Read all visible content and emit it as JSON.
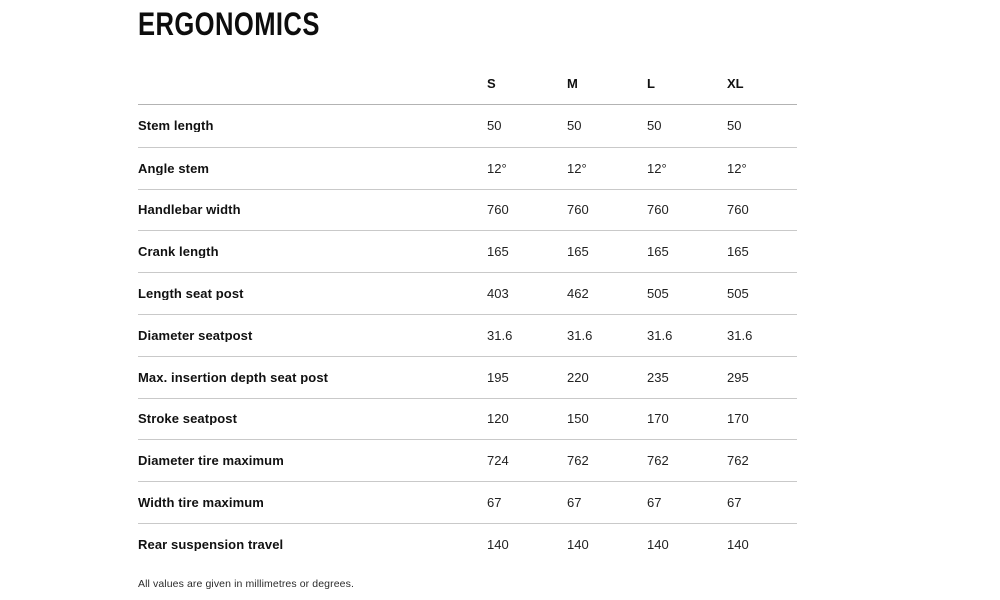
{
  "title": "ERGONOMICS",
  "table": {
    "size_headers": [
      "S",
      "M",
      "L",
      "XL"
    ],
    "rows": [
      {
        "label": "Stem length",
        "values": [
          "50",
          "50",
          "50",
          "50"
        ]
      },
      {
        "label": "Angle stem",
        "values": [
          "12°",
          "12°",
          "12°",
          "12°"
        ]
      },
      {
        "label": "Handlebar width",
        "values": [
          "760",
          "760",
          "760",
          "760"
        ]
      },
      {
        "label": "Crank length",
        "values": [
          "165",
          "165",
          "165",
          "165"
        ]
      },
      {
        "label": "Length seat post",
        "values": [
          "403",
          "462",
          "505",
          "505"
        ]
      },
      {
        "label": "Diameter seatpost",
        "values": [
          "31.6",
          "31.6",
          "31.6",
          "31.6"
        ]
      },
      {
        "label": "Max. insertion depth seat post",
        "values": [
          "195",
          "220",
          "235",
          "295"
        ]
      },
      {
        "label": "Stroke seatpost",
        "values": [
          "120",
          "150",
          "170",
          "170"
        ]
      },
      {
        "label": "Diameter tire maximum",
        "values": [
          "724",
          "762",
          "762",
          "762"
        ]
      },
      {
        "label": "Width tire maximum",
        "values": [
          "67",
          "67",
          "67",
          "67"
        ]
      },
      {
        "label": "Rear suspension travel",
        "values": [
          "140",
          "140",
          "140",
          "140"
        ]
      }
    ]
  },
  "footnote": "All values are given in millimetres or degrees.",
  "colors": {
    "text": "#111111",
    "divider": "#c9c9c9",
    "header_divider": "#b3b3b3",
    "background": "#ffffff"
  }
}
